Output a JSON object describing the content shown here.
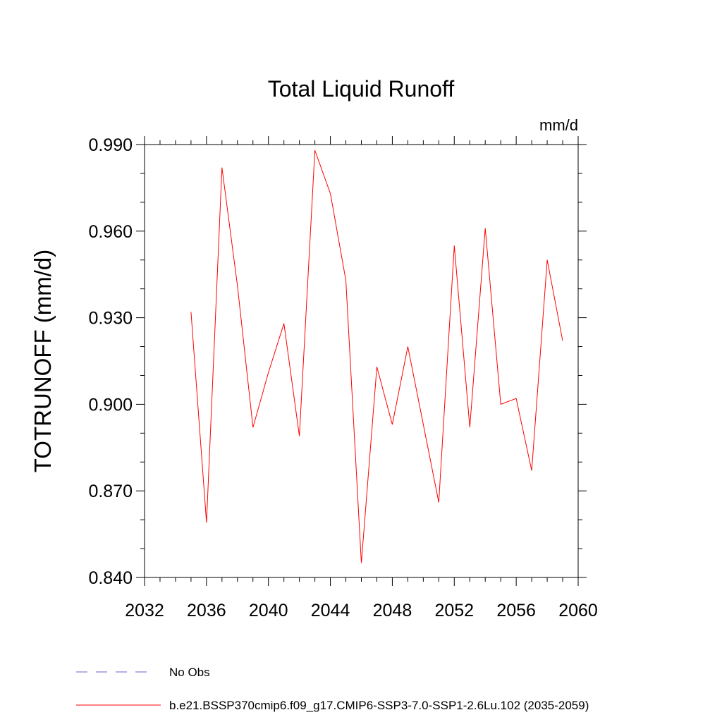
{
  "chart_data": {
    "type": "line",
    "title": "Total Liquid Runoff",
    "units": "mm/d",
    "ylabel": "TOTRUNOFF  (mm/d)",
    "xlabel": "",
    "xlim": [
      2032,
      2060
    ],
    "ylim": [
      0.84,
      0.99
    ],
    "x_ticks": [
      2032,
      2036,
      2040,
      2044,
      2048,
      2052,
      2056,
      2060
    ],
    "x_tick_labels": [
      "2032",
      "2036",
      "2040",
      "2044",
      "2048",
      "2052",
      "2056",
      "2060"
    ],
    "y_ticks": [
      0.84,
      0.87,
      0.9,
      0.93,
      0.96,
      0.99
    ],
    "y_tick_labels": [
      "0.840",
      "0.870",
      "0.900",
      "0.930",
      "0.960",
      "0.990"
    ],
    "x_minor_step": 1,
    "y_minor_step": 0.01,
    "grid": false,
    "legend_position": "bottom-left",
    "x": [
      2035,
      2036,
      2037,
      2038,
      2039,
      2040,
      2041,
      2042,
      2043,
      2044,
      2045,
      2046,
      2047,
      2048,
      2049,
      2050,
      2051,
      2052,
      2053,
      2054,
      2055,
      2056,
      2057,
      2058,
      2059
    ],
    "series": [
      {
        "name": "b.e21.BSSP370cmip6.f09_g17.CMIP6-SSP3-7.0-SSP1-2.6Lu.102 (2035-2059)",
        "color": "#ff0000",
        "style": "solid",
        "values": [
          0.932,
          0.859,
          0.982,
          0.941,
          0.892,
          0.911,
          0.928,
          0.889,
          0.988,
          0.973,
          0.943,
          0.845,
          0.913,
          0.893,
          0.92,
          0.893,
          0.866,
          0.955,
          0.892,
          0.961,
          0.9,
          0.902,
          0.877,
          0.95,
          0.922
        ]
      }
    ],
    "legend": [
      {
        "label": "No Obs",
        "color": "#6666cc",
        "style": "dashed"
      },
      {
        "label": "b.e21.BSSP370cmip6.f09_g17.CMIP6-SSP3-7.0-SSP1-2.6Lu.102 (2035-2059)",
        "color": "#ff0000",
        "style": "solid"
      }
    ]
  }
}
